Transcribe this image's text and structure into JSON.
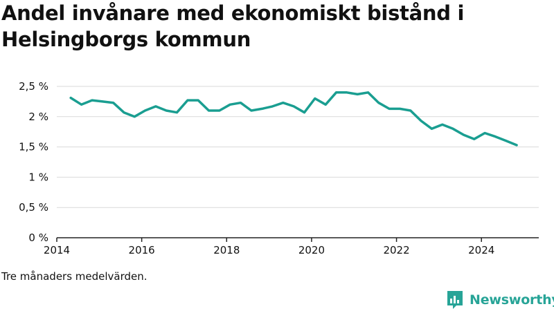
{
  "title": "Andel invånare med ekonomiskt bistånd i Helsingborgs kommun",
  "note": "Tre månaders medelvärden.",
  "brand": {
    "name": "Newsworthy",
    "icon": "newsworthy-logo-icon",
    "color": "#27a497"
  },
  "colors": {
    "line": "#1a9e91",
    "grid": "#d9d9d9",
    "axis": "#222222",
    "text": "#111111"
  },
  "chart_data": {
    "type": "line",
    "title": "Andel invånare med ekonomiskt bistånd i Helsingborgs kommun",
    "xlabel": "",
    "ylabel": "",
    "xlim": [
      2014.0,
      2025.35
    ],
    "ylim": [
      0,
      2.5
    ],
    "yticks": [
      0,
      0.5,
      1,
      1.5,
      2,
      2.5
    ],
    "ytick_labels": [
      "0 %",
      "0,5 %",
      "1 %",
      "1,5 %",
      "2 %",
      "2,5 %"
    ],
    "xticks": [
      2014,
      2016,
      2018,
      2020,
      2022,
      2024
    ],
    "xtick_labels": [
      "2014",
      "2016",
      "2018",
      "2020",
      "2022",
      "2024"
    ],
    "grid": "horizontal",
    "series": [
      {
        "color": "#1a9e91",
        "x": [
          2014.33,
          2014.58,
          2014.83,
          2015.08,
          2015.33,
          2015.58,
          2015.83,
          2016.08,
          2016.33,
          2016.58,
          2016.83,
          2017.08,
          2017.33,
          2017.58,
          2017.83,
          2018.08,
          2018.33,
          2018.58,
          2018.83,
          2019.08,
          2019.33,
          2019.58,
          2019.83,
          2020.08,
          2020.33,
          2020.58,
          2020.83,
          2021.08,
          2021.33,
          2021.58,
          2021.83,
          2022.08,
          2022.33,
          2022.58,
          2022.83,
          2023.08,
          2023.33,
          2023.58,
          2023.83,
          2024.08,
          2024.33,
          2024.58,
          2024.83
        ],
        "values": [
          2.31,
          2.2,
          2.27,
          2.25,
          2.23,
          2.07,
          2.0,
          2.1,
          2.17,
          2.1,
          2.07,
          2.27,
          2.27,
          2.1,
          2.1,
          2.2,
          2.23,
          2.1,
          2.13,
          2.17,
          2.23,
          2.17,
          2.07,
          2.3,
          2.2,
          2.4,
          2.4,
          2.37,
          2.4,
          2.23,
          2.13,
          2.13,
          2.1,
          1.93,
          1.8,
          1.87,
          1.8,
          1.7,
          1.63,
          1.73,
          1.67,
          1.6,
          1.53
        ]
      }
    ]
  }
}
